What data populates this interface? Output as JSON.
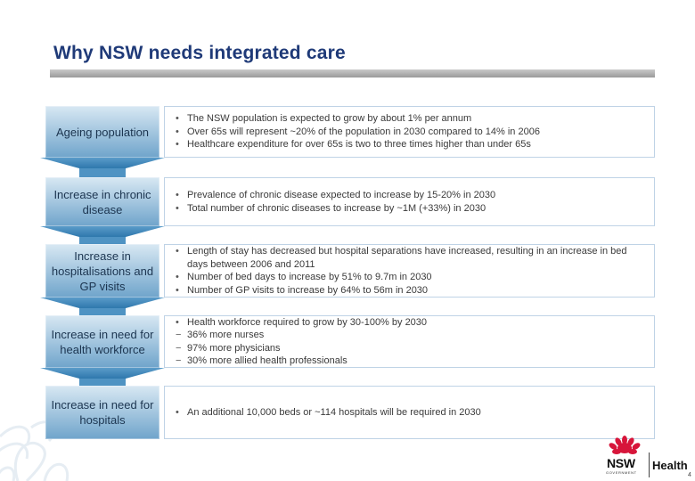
{
  "slide": {
    "title": "Why NSW needs integrated care"
  },
  "rows": [
    {
      "label": "Ageing population",
      "bullets": [
        {
          "marker": "•",
          "text": "The NSW population is expected to grow by about 1% per annum"
        },
        {
          "marker": "•",
          "text": "Over 65s will represent ~20% of the population in 2030 compared to 14% in 2006"
        },
        {
          "marker": "•",
          "text": "Healthcare expenditure for over 65s is two to three times higher than under 65s"
        }
      ]
    },
    {
      "label": "Increase in chronic disease",
      "bullets": [
        {
          "marker": "•",
          "text": "Prevalence of chronic disease expected to increase by 15-20% in 2030"
        },
        {
          "marker": "•",
          "text": "Total number of chronic diseases to increase by ~1M (+33%) in 2030"
        }
      ]
    },
    {
      "label": "Increase in hospitalisations and GP visits",
      "bullets": [
        {
          "marker": "•",
          "text": "Length of stay has decreased but hospital separations have increased, resulting in an increase in bed days between 2006 and 2011"
        },
        {
          "marker": "•",
          "text": "Number of bed days to increase by 51% to 9.7m in 2030"
        },
        {
          "marker": "•",
          "text": "Number of GP visits to increase by 64% to 56m in 2030"
        }
      ]
    },
    {
      "label": "Increase in need for health workforce",
      "bullets": [
        {
          "marker": "•",
          "text": "Health workforce required to grow by 30-100% by 2030"
        },
        {
          "marker": "−",
          "text": "36% more nurses"
        },
        {
          "marker": "−",
          "text": "97% more physicians"
        },
        {
          "marker": "−",
          "text": "30% more allied health professionals"
        }
      ]
    },
    {
      "label": "Increase in need for hospitals",
      "bullets": [
        {
          "marker": "•",
          "text": "An additional 10,000 beds or ~114 hospitals will be required in 2030"
        }
      ]
    }
  ],
  "logo": {
    "nsw": "NSW",
    "government": "GOVERNMENT",
    "health": "Health"
  },
  "page_number": "4",
  "colors": {
    "title": "#1f3a78",
    "label_box_top": "#d8e8f3",
    "label_box_bottom": "#6fa4cb",
    "arrow": "#2f78ad",
    "waratah_red": "#d7153a"
  }
}
